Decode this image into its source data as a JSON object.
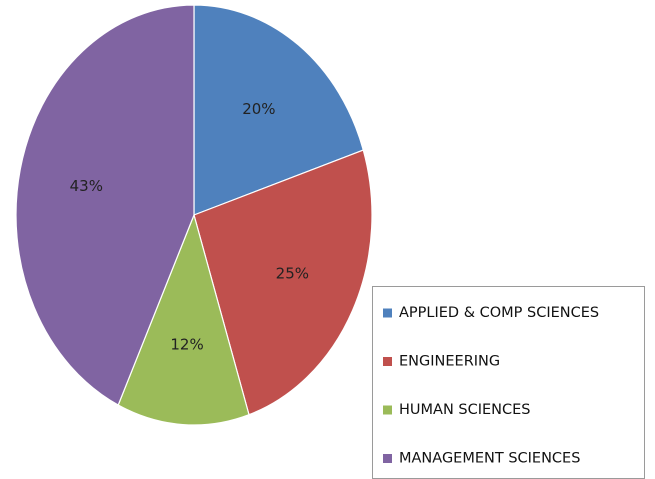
{
  "chart_data": {
    "type": "pie",
    "categories": [
      "APPLIED & COMP SCIENCES",
      "ENGINEERING",
      "HUMAN SCIENCES",
      "MANAGEMENT SCIENCES"
    ],
    "values": [
      20,
      25,
      12,
      43
    ],
    "value_labels": [
      "20%",
      "25%",
      "12%",
      "43%"
    ],
    "colors": [
      "#4f81bd",
      "#c0504d",
      "#9bbb59",
      "#8064a2"
    ],
    "legend": "bottom-right"
  }
}
